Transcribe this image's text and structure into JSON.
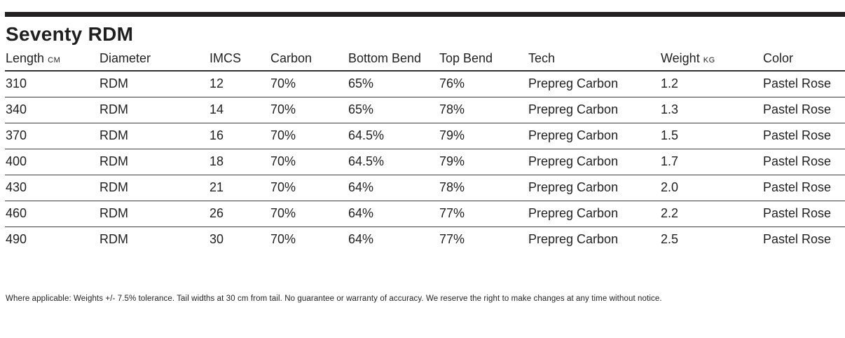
{
  "title": "Seventy RDM",
  "table": {
    "columns": [
      {
        "key": "length",
        "label": "Length",
        "unit": "CM"
      },
      {
        "key": "diameter",
        "label": "Diameter"
      },
      {
        "key": "imcs",
        "label": "IMCS"
      },
      {
        "key": "carbon",
        "label": "Carbon"
      },
      {
        "key": "bottom-bend",
        "label": "Bottom Bend"
      },
      {
        "key": "top-bend",
        "label": "Top Bend"
      },
      {
        "key": "tech",
        "label": "Tech"
      },
      {
        "key": "weight",
        "label": "Weight",
        "unit": "KG"
      },
      {
        "key": "color",
        "label": "Color"
      }
    ],
    "rows": [
      [
        "310",
        "RDM",
        "12",
        "70%",
        "65%",
        "76%",
        "Prepreg Carbon",
        "1.2",
        "Pastel Rose"
      ],
      [
        "340",
        "RDM",
        "14",
        "70%",
        "65%",
        "78%",
        "Prepreg Carbon",
        "1.3",
        "Pastel Rose"
      ],
      [
        "370",
        "RDM",
        "16",
        "70%",
        "64.5%",
        "79%",
        "Prepreg Carbon",
        "1.5",
        "Pastel Rose"
      ],
      [
        "400",
        "RDM",
        "18",
        "70%",
        "64.5%",
        "79%",
        "Prepreg Carbon",
        "1.7",
        "Pastel Rose"
      ],
      [
        "430",
        "RDM",
        "21",
        "70%",
        "64%",
        "78%",
        "Prepreg Carbon",
        "2.0",
        "Pastel Rose"
      ],
      [
        "460",
        "RDM",
        "26",
        "70%",
        "64%",
        "77%",
        "Prepreg Carbon",
        "2.2",
        "Pastel Rose"
      ],
      [
        "490",
        "RDM",
        "30",
        "70%",
        "64%",
        "77%",
        "Prepreg Carbon",
        "2.5",
        "Pastel Rose"
      ]
    ]
  },
  "disclaimer": "Where applicable: Weights +/- 7.5% tolerance. Tail widths at 30 cm from tail. No guarantee or warranty of accuracy. We reserve the right to make changes at any time without notice.",
  "colors": {
    "text": "#1f1f1f",
    "top_rule": "#242122",
    "header_line": "#323031",
    "row_line": "#3e3c3d",
    "background": "#ffffff"
  }
}
